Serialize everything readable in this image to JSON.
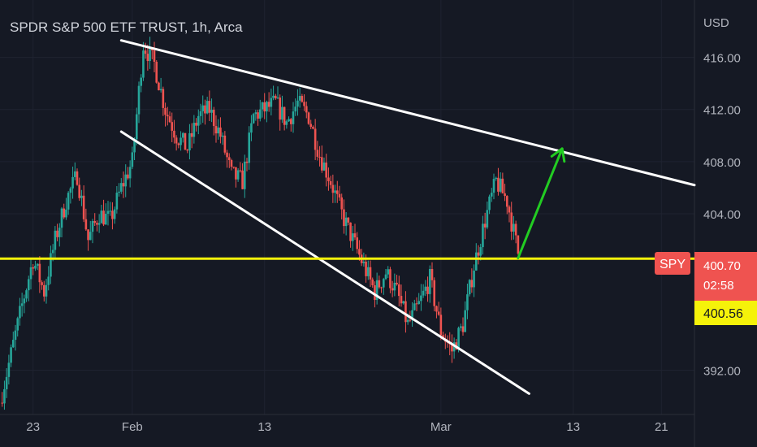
{
  "header": {
    "title": "SPDR S&P 500 ETF TRUST, 1h, Arca",
    "currency": "USD"
  },
  "colors": {
    "background": "#151924",
    "up": "#26a69a",
    "down": "#ef5350",
    "trendline": "#ffffff",
    "support": "#f5f20a",
    "arrow": "#22cc22",
    "grid": "#1f2330"
  },
  "badges": {
    "symbol": "SPY",
    "last_price": "400.70",
    "countdown": "02:58",
    "level_price": "400.56"
  },
  "chart_data": {
    "type": "candlestick",
    "title": "SPDR S&P 500 ETF TRUST, 1h, Arca",
    "ylabel": "USD",
    "ylim": [
      388.6,
      420.4
    ],
    "y_ticks": [
      "416.00",
      "412.00",
      "408.00",
      "404.00",
      "392.00"
    ],
    "x_ticks": [
      "23",
      "Feb",
      "13",
      "Mar",
      "13",
      "21"
    ],
    "x_range": [
      "Jan 20",
      "Mar 24"
    ],
    "grid": true,
    "waypoints": [
      [
        "Jan 20",
        389.5
      ],
      [
        "Jan 22",
        397
      ],
      [
        "Jan 23",
        400.5
      ],
      [
        "Jan 24",
        398
      ],
      [
        "Jan 25",
        402
      ],
      [
        "Jan 26",
        405
      ],
      [
        "Jan 27",
        407
      ],
      [
        "Jan 28",
        402
      ],
      [
        "Jan 29",
        404
      ],
      [
        "Jan 30",
        403.5
      ],
      [
        "Jan 31",
        406
      ],
      [
        "Feb 1",
        408
      ],
      [
        "Feb 2",
        417
      ],
      [
        "Feb 3",
        415.5
      ],
      [
        "Feb 4",
        412
      ],
      [
        "Feb 5",
        410
      ],
      [
        "Feb 6",
        409
      ],
      [
        "Feb 7",
        411.5
      ],
      [
        "Feb 8",
        412
      ],
      [
        "Feb 9",
        410
      ],
      [
        "Feb 10",
        407
      ],
      [
        "Feb 11",
        406.5
      ],
      [
        "Feb 12",
        411.5
      ],
      [
        "Feb 14",
        412.5
      ],
      [
        "Feb 15",
        411
      ],
      [
        "Feb 16",
        412.5
      ],
      [
        "Feb 17",
        411.5
      ],
      [
        "Feb 18",
        408.5
      ],
      [
        "Feb 19",
        406.5
      ],
      [
        "Feb 20",
        404
      ],
      [
        "Feb 21",
        402
      ],
      [
        "Feb 22",
        400
      ],
      [
        "Feb 23",
        398
      ],
      [
        "Feb 24",
        399.5
      ],
      [
        "Feb 25",
        398
      ],
      [
        "Feb 26",
        395.5
      ],
      [
        "Feb 27",
        397
      ],
      [
        "Feb 28",
        399
      ],
      [
        "Mar 1",
        395
      ],
      [
        "Mar 2",
        393.5
      ],
      [
        "Mar 3",
        395.5
      ],
      [
        "Mar 4",
        400
      ],
      [
        "Mar 5",
        403.5
      ],
      [
        "Mar 6",
        406.5
      ],
      [
        "Mar 7",
        405
      ],
      [
        "Mar 8",
        401
      ]
    ],
    "annotations": [
      {
        "type": "trendline",
        "name": "upper-trendline",
        "from": [
          "Jan 31",
          417.3
        ],
        "to": [
          "Mar 24",
          406.2
        ]
      },
      {
        "type": "trendline",
        "name": "lower-trendline",
        "from": [
          "Jan 31",
          410.3
        ],
        "to": [
          "Mar 9",
          390.2
        ]
      },
      {
        "type": "horizontal-line",
        "name": "support-line",
        "y": 400.56
      },
      {
        "type": "arrow",
        "name": "projection-arrow",
        "from": [
          "Mar 8",
          400.6
        ],
        "to": [
          "Mar 12",
          409
        ]
      }
    ]
  }
}
